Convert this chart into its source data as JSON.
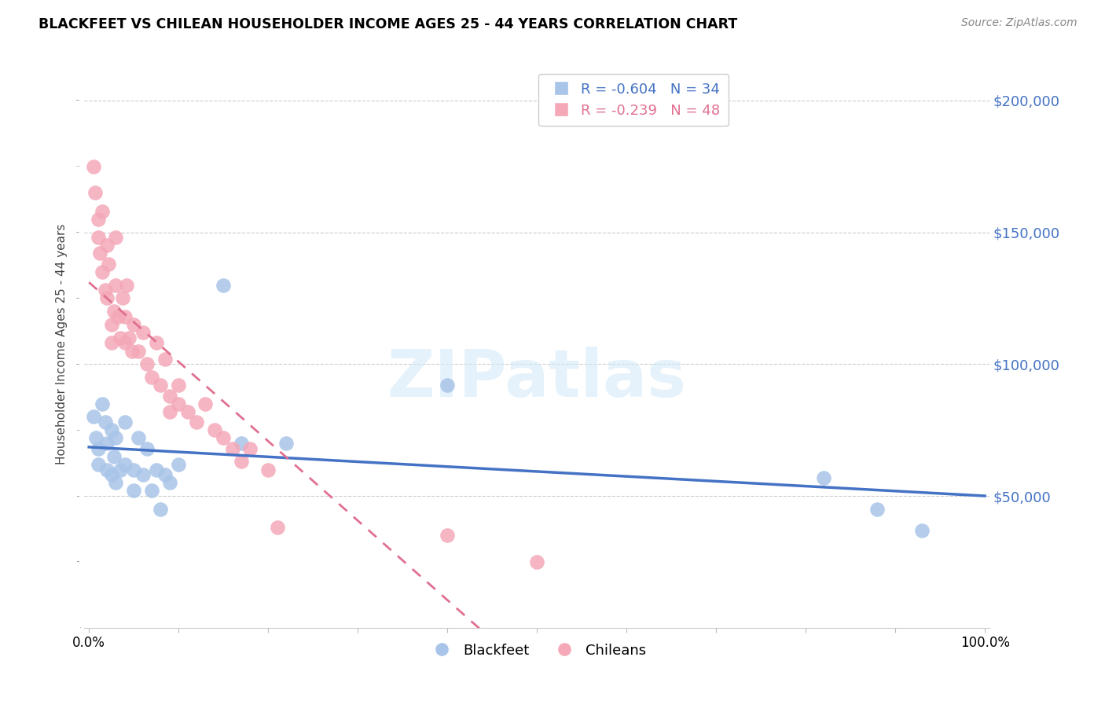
{
  "title": "BLACKFEET VS CHILEAN HOUSEHOLDER INCOME AGES 25 - 44 YEARS CORRELATION CHART",
  "source": "Source: ZipAtlas.com",
  "ylabel": "Householder Income Ages 25 - 44 years",
  "blackfeet_R": -0.604,
  "blackfeet_N": 34,
  "chilean_R": -0.239,
  "chilean_N": 48,
  "blackfeet_color": "#A8C4E8",
  "chilean_color": "#F4A8B8",
  "blackfeet_line_color": "#4472C4",
  "chilean_line_color": "#E07090",
  "ylim": [
    0,
    215000
  ],
  "xlim": [
    -0.005,
    1.005
  ],
  "yticks": [
    50000,
    100000,
    150000,
    200000
  ],
  "xticks": [
    0.0,
    0.1,
    0.2,
    0.3,
    0.4,
    0.5,
    0.6,
    0.7,
    0.8,
    0.9,
    1.0
  ],
  "blackfeet_x": [
    0.005,
    0.008,
    0.01,
    0.01,
    0.015,
    0.018,
    0.02,
    0.02,
    0.025,
    0.025,
    0.028,
    0.03,
    0.03,
    0.035,
    0.04,
    0.04,
    0.05,
    0.05,
    0.055,
    0.06,
    0.065,
    0.07,
    0.075,
    0.08,
    0.085,
    0.09,
    0.1,
    0.15,
    0.17,
    0.22,
    0.4,
    0.82,
    0.88,
    0.93
  ],
  "blackfeet_y": [
    80000,
    72000,
    68000,
    62000,
    85000,
    78000,
    70000,
    60000,
    75000,
    58000,
    65000,
    72000,
    55000,
    60000,
    78000,
    62000,
    60000,
    52000,
    72000,
    58000,
    68000,
    52000,
    60000,
    45000,
    58000,
    55000,
    62000,
    130000,
    70000,
    70000,
    92000,
    57000,
    45000,
    37000
  ],
  "chilean_x": [
    0.005,
    0.007,
    0.01,
    0.01,
    0.012,
    0.015,
    0.015,
    0.018,
    0.02,
    0.02,
    0.022,
    0.025,
    0.025,
    0.028,
    0.03,
    0.03,
    0.032,
    0.035,
    0.038,
    0.04,
    0.04,
    0.042,
    0.045,
    0.048,
    0.05,
    0.055,
    0.06,
    0.065,
    0.07,
    0.075,
    0.08,
    0.085,
    0.09,
    0.09,
    0.1,
    0.1,
    0.11,
    0.12,
    0.13,
    0.14,
    0.15,
    0.16,
    0.17,
    0.18,
    0.2,
    0.21,
    0.4,
    0.5
  ],
  "chilean_y": [
    175000,
    165000,
    155000,
    148000,
    142000,
    158000,
    135000,
    128000,
    145000,
    125000,
    138000,
    115000,
    108000,
    120000,
    148000,
    130000,
    118000,
    110000,
    125000,
    118000,
    108000,
    130000,
    110000,
    105000,
    115000,
    105000,
    112000,
    100000,
    95000,
    108000,
    92000,
    102000,
    88000,
    82000,
    92000,
    85000,
    82000,
    78000,
    85000,
    75000,
    72000,
    68000,
    63000,
    68000,
    60000,
    38000,
    35000,
    25000
  ]
}
